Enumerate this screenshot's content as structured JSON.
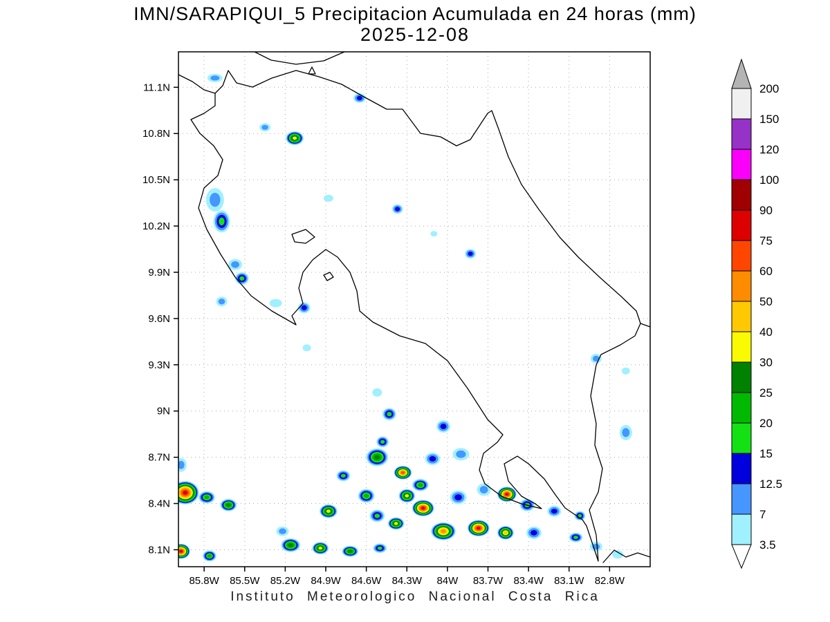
{
  "title": {
    "line1": "IMN/SARAPIQUI_5 Precipitacion Acumulada en 24 horas (mm)",
    "line2": "2025-12-08"
  },
  "footer": "Instituto Meteorologico Nacional Costa Rica",
  "axes": {
    "lat_ticks": [
      {
        "label": "11.1N",
        "value": 11.1
      },
      {
        "label": "10.8N",
        "value": 10.8
      },
      {
        "label": "10.5N",
        "value": 10.5
      },
      {
        "label": "10.2N",
        "value": 10.2
      },
      {
        "label": "9.9N",
        "value": 9.9
      },
      {
        "label": "9.6N",
        "value": 9.6
      },
      {
        "label": "9.3N",
        "value": 9.3
      },
      {
        "label": "9N",
        "value": 9.0
      },
      {
        "label": "8.7N",
        "value": 8.7
      },
      {
        "label": "8.4N",
        "value": 8.4
      },
      {
        "label": "8.1N",
        "value": 8.1
      }
    ],
    "lon_ticks": [
      {
        "label": "85.8W",
        "value": 85.8
      },
      {
        "label": "85.5W",
        "value": 85.5
      },
      {
        "label": "85.2W",
        "value": 85.2
      },
      {
        "label": "84.9W",
        "value": 84.9
      },
      {
        "label": "84.6W",
        "value": 84.6
      },
      {
        "label": "84.3W",
        "value": 84.3
      },
      {
        "label": "84W",
        "value": 84.0
      },
      {
        "label": "83.7W",
        "value": 83.7
      },
      {
        "label": "83.4W",
        "value": 83.4
      },
      {
        "label": "83.1W",
        "value": 83.1
      },
      {
        "label": "82.8W",
        "value": 82.8
      }
    ],
    "lat_range": [
      7.99,
      11.33
    ],
    "lon_range": [
      85.99,
      82.5
    ]
  },
  "colorbar": {
    "boundaries": [
      "200",
      "150",
      "120",
      "100",
      "90",
      "75",
      "60",
      "50",
      "40",
      "30",
      "25",
      "20",
      "15",
      "12.5",
      "7",
      "3.5"
    ],
    "segment_colors": [
      "#f0f0f0",
      "#9632c8",
      "#fa00fa",
      "#a00000",
      "#dc0000",
      "#ff4600",
      "#ff8c00",
      "#ffc800",
      "#fafa00",
      "#008200",
      "#00b900",
      "#14e114",
      "#0000dc",
      "#4696ff",
      "#a0f0ff"
    ],
    "above_max_color": "#b4b4b4",
    "below_min_color": "#ffffff"
  },
  "chart_data": {
    "type": "heatmap",
    "units": "mm",
    "title": "IMN/SARAPIQUI_5 Precipitacion Acumulada en 24 horas (mm)",
    "date": "2025-12-08",
    "levels_mm": [
      3.5,
      7,
      12.5,
      15,
      20,
      25,
      30,
      40,
      50,
      60,
      75,
      90,
      100,
      120,
      150,
      200
    ],
    "level_colors": [
      "#a0f0ff",
      "#4696ff",
      "#0000dc",
      "#14e114",
      "#00b900",
      "#008200",
      "#fafa00",
      "#ffc800",
      "#ff8c00",
      "#ff4600",
      "#dc0000",
      "#a00000",
      "#fa00fa",
      "#9632c8",
      "#f0f0f0"
    ],
    "cells": [
      {
        "lon": 85.72,
        "lat": 11.16,
        "rx": 11,
        "ry": 6,
        "mm": 9
      },
      {
        "lon": 84.65,
        "lat": 11.03,
        "rx": 9,
        "ry": 7,
        "mm": 13
      },
      {
        "lon": 85.35,
        "lat": 10.84,
        "rx": 8,
        "ry": 6,
        "mm": 9
      },
      {
        "lon": 85.13,
        "lat": 10.77,
        "rx": 13,
        "ry": 10,
        "mm": 33
      },
      {
        "lon": 85.72,
        "lat": 10.37,
        "rx": 13,
        "ry": 17,
        "mm": 9
      },
      {
        "lon": 85.67,
        "lat": 10.23,
        "rx": 12,
        "ry": 16,
        "mm": 17
      },
      {
        "lon": 84.88,
        "lat": 10.38,
        "rx": 7,
        "ry": 5,
        "mm": 5
      },
      {
        "lon": 84.37,
        "lat": 10.31,
        "rx": 8,
        "ry": 7,
        "mm": 13
      },
      {
        "lon": 84.1,
        "lat": 10.15,
        "rx": 5,
        "ry": 4,
        "mm": 5
      },
      {
        "lon": 85.57,
        "lat": 9.95,
        "rx": 10,
        "ry": 8,
        "mm": 9
      },
      {
        "lon": 85.52,
        "lat": 9.86,
        "rx": 10,
        "ry": 9,
        "mm": 17
      },
      {
        "lon": 85.67,
        "lat": 9.71,
        "rx": 8,
        "ry": 7,
        "mm": 9
      },
      {
        "lon": 85.27,
        "lat": 9.7,
        "rx": 9,
        "ry": 6,
        "mm": 5
      },
      {
        "lon": 85.06,
        "lat": 9.67,
        "rx": 9,
        "ry": 8,
        "mm": 13
      },
      {
        "lon": 83.83,
        "lat": 10.02,
        "rx": 8,
        "ry": 7,
        "mm": 13
      },
      {
        "lon": 85.04,
        "lat": 9.41,
        "rx": 6,
        "ry": 5,
        "mm": 5
      },
      {
        "lon": 82.9,
        "lat": 9.34,
        "rx": 8,
        "ry": 7,
        "mm": 9
      },
      {
        "lon": 82.68,
        "lat": 9.26,
        "rx": 6,
        "ry": 5,
        "mm": 5
      },
      {
        "lon": 84.52,
        "lat": 9.12,
        "rx": 7,
        "ry": 6,
        "mm": 5
      },
      {
        "lon": 84.43,
        "lat": 8.98,
        "rx": 10,
        "ry": 9,
        "mm": 17
      },
      {
        "lon": 84.03,
        "lat": 8.9,
        "rx": 10,
        "ry": 9,
        "mm": 13
      },
      {
        "lon": 82.68,
        "lat": 8.86,
        "rx": 9,
        "ry": 11,
        "mm": 9
      },
      {
        "lon": 84.48,
        "lat": 8.8,
        "rx": 9,
        "ry": 8,
        "mm": 17
      },
      {
        "lon": 84.77,
        "lat": 8.58,
        "rx": 10,
        "ry": 8,
        "mm": 17
      },
      {
        "lon": 85.97,
        "lat": 8.65,
        "rx": 8,
        "ry": 10,
        "mm": 9
      },
      {
        "lon": 84.52,
        "lat": 8.7,
        "rx": 16,
        "ry": 13,
        "mm": 27
      },
      {
        "lon": 84.33,
        "lat": 8.6,
        "rx": 13,
        "ry": 10,
        "mm": 65
      },
      {
        "lon": 84.11,
        "lat": 8.69,
        "rx": 11,
        "ry": 9,
        "mm": 13
      },
      {
        "lon": 83.9,
        "lat": 8.72,
        "rx": 12,
        "ry": 9,
        "mm": 9
      },
      {
        "lon": 84.2,
        "lat": 8.52,
        "rx": 12,
        "ry": 9,
        "mm": 22
      },
      {
        "lon": 85.94,
        "lat": 8.47,
        "rx": 20,
        "ry": 17,
        "mm": 80
      },
      {
        "lon": 85.78,
        "lat": 8.44,
        "rx": 12,
        "ry": 9,
        "mm": 22
      },
      {
        "lon": 85.62,
        "lat": 8.39,
        "rx": 12,
        "ry": 9,
        "mm": 27
      },
      {
        "lon": 85.97,
        "lat": 8.09,
        "rx": 13,
        "ry": 11,
        "mm": 80
      },
      {
        "lon": 85.76,
        "lat": 8.06,
        "rx": 10,
        "ry": 8,
        "mm": 22
      },
      {
        "lon": 85.22,
        "lat": 8.22,
        "rx": 9,
        "ry": 7,
        "mm": 9
      },
      {
        "lon": 85.16,
        "lat": 8.13,
        "rx": 14,
        "ry": 10,
        "mm": 27
      },
      {
        "lon": 84.94,
        "lat": 8.11,
        "rx": 12,
        "ry": 9,
        "mm": 33
      },
      {
        "lon": 84.88,
        "lat": 8.35,
        "rx": 13,
        "ry": 10,
        "mm": 33
      },
      {
        "lon": 84.72,
        "lat": 8.09,
        "rx": 12,
        "ry": 8,
        "mm": 27
      },
      {
        "lon": 84.5,
        "lat": 8.11,
        "rx": 10,
        "ry": 7,
        "mm": 17
      },
      {
        "lon": 84.52,
        "lat": 8.32,
        "rx": 11,
        "ry": 9,
        "mm": 17
      },
      {
        "lon": 84.38,
        "lat": 8.27,
        "rx": 12,
        "ry": 9,
        "mm": 33
      },
      {
        "lon": 84.18,
        "lat": 8.37,
        "rx": 16,
        "ry": 12,
        "mm": 80
      },
      {
        "lon": 84.03,
        "lat": 8.22,
        "rx": 18,
        "ry": 13,
        "mm": 55
      },
      {
        "lon": 83.77,
        "lat": 8.24,
        "rx": 16,
        "ry": 12,
        "mm": 80
      },
      {
        "lon": 83.57,
        "lat": 8.21,
        "rx": 12,
        "ry": 10,
        "mm": 45
      },
      {
        "lon": 83.92,
        "lat": 8.44,
        "rx": 12,
        "ry": 10,
        "mm": 13
      },
      {
        "lon": 83.73,
        "lat": 8.49,
        "rx": 10,
        "ry": 9,
        "mm": 9
      },
      {
        "lon": 83.56,
        "lat": 8.46,
        "rx": 14,
        "ry": 11,
        "mm": 80
      },
      {
        "lon": 83.41,
        "lat": 8.39,
        "rx": 11,
        "ry": 9,
        "mm": 17
      },
      {
        "lon": 83.21,
        "lat": 8.35,
        "rx": 10,
        "ry": 8,
        "mm": 13
      },
      {
        "lon": 83.02,
        "lat": 8.32,
        "rx": 8,
        "ry": 7,
        "mm": 17
      },
      {
        "lon": 83.36,
        "lat": 8.21,
        "rx": 11,
        "ry": 9,
        "mm": 13
      },
      {
        "lon": 83.05,
        "lat": 8.18,
        "rx": 10,
        "ry": 7,
        "mm": 17
      },
      {
        "lon": 82.9,
        "lat": 8.12,
        "rx": 9,
        "ry": 7,
        "mm": 9
      },
      {
        "lon": 82.74,
        "lat": 8.07,
        "rx": 8,
        "ry": 6,
        "mm": 5
      },
      {
        "lon": 84.6,
        "lat": 8.45,
        "rx": 12,
        "ry": 10,
        "mm": 22
      },
      {
        "lon": 84.3,
        "lat": 8.45,
        "rx": 12,
        "ry": 10,
        "mm": 33
      }
    ]
  }
}
